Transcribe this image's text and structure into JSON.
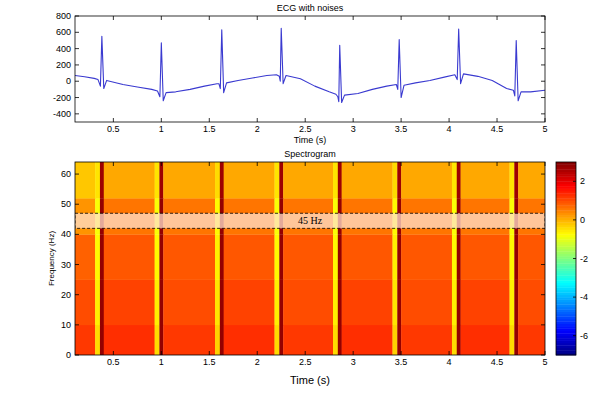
{
  "chart_data": [
    {
      "type": "line",
      "title": "ECG with noises",
      "xlabel": "Time (s)",
      "x": [
        0.1,
        0.2,
        0.3,
        0.34,
        0.365,
        0.38,
        0.4,
        0.43,
        0.6,
        0.75,
        0.9,
        0.96,
        0.985,
        1.0,
        1.02,
        1.05,
        1.15,
        1.3,
        1.45,
        1.58,
        1.6,
        1.615,
        1.63,
        1.65,
        1.68,
        1.8,
        1.95,
        2.1,
        2.2,
        2.23,
        2.24,
        2.25,
        2.27,
        2.3,
        2.45,
        2.6,
        2.75,
        2.82,
        2.84,
        2.85,
        2.86,
        2.88,
        2.91,
        3.05,
        3.2,
        3.35,
        3.45,
        3.465,
        3.48,
        3.5,
        3.53,
        3.65,
        3.8,
        3.95,
        4.06,
        4.085,
        4.1,
        4.12,
        4.15,
        4.3,
        4.45,
        4.6,
        4.67,
        4.685,
        4.7,
        4.72,
        4.75,
        4.85,
        5.0
      ],
      "values": [
        70,
        55,
        35,
        20,
        -60,
        550,
        -90,
        10,
        -40,
        -70,
        -100,
        -120,
        -190,
        470,
        -240,
        -140,
        -130,
        -100,
        -60,
        -30,
        -30,
        -90,
        630,
        -140,
        -20,
        10,
        40,
        70,
        80,
        60,
        0,
        650,
        -30,
        70,
        30,
        -60,
        -130,
        -160,
        -190,
        -250,
        440,
        -260,
        -170,
        -150,
        -100,
        -60,
        -40,
        -100,
        510,
        -200,
        -50,
        -20,
        10,
        50,
        80,
        20,
        640,
        -30,
        90,
        60,
        10,
        -90,
        -110,
        -180,
        500,
        -240,
        -130,
        -130,
        -110
      ],
      "color": "#3a3ad0",
      "xlim": [
        0.1,
        5
      ],
      "xticks": [
        0.5,
        1,
        1.5,
        2,
        2.5,
        3,
        3.5,
        4,
        4.5,
        5
      ],
      "ylim": [
        -500,
        800
      ],
      "yticks": [
        -400,
        -200,
        0,
        200,
        400,
        600,
        800
      ],
      "grid": false
    },
    {
      "type": "heatmap",
      "title": "Spectrogram",
      "xlabel": "Time (s)",
      "ylabel": "Frequency (Hz)",
      "x_edges": [
        0.1,
        0.31,
        0.36,
        0.4,
        0.93,
        0.98,
        1.02,
        1.56,
        1.61,
        1.65,
        2.18,
        2.23,
        2.27,
        2.79,
        2.84,
        2.88,
        3.41,
        3.46,
        3.5,
        4.03,
        4.08,
        4.12,
        4.63,
        4.68,
        4.72,
        5.0
      ],
      "y_edges": [
        0,
        10,
        25,
        40,
        52,
        64
      ],
      "cells": [
        [
          1.2,
          -0.4,
          2.8,
          1.3,
          -0.4,
          2.8,
          1.2,
          -0.3,
          2.8,
          1.3,
          -0.4,
          2.8,
          1.2,
          -0.4,
          2.8,
          1.3,
          -0.3,
          2.8,
          1.2,
          -0.4,
          2.8,
          1.3,
          -0.4,
          2.8,
          1.2
        ],
        [
          1.0,
          -0.6,
          2.8,
          1.1,
          -0.6,
          2.8,
          1.0,
          -0.5,
          2.8,
          1.1,
          -0.6,
          2.8,
          1.0,
          -0.6,
          2.8,
          1.1,
          -0.5,
          2.8,
          1.0,
          -0.6,
          2.8,
          1.1,
          -0.6,
          2.8,
          1.0
        ],
        [
          0.8,
          -0.7,
          2.8,
          0.9,
          -0.7,
          2.8,
          0.9,
          -0.6,
          2.8,
          0.9,
          -0.7,
          2.8,
          0.9,
          -0.7,
          2.8,
          0.9,
          -0.6,
          2.8,
          0.9,
          -0.7,
          2.8,
          0.9,
          -0.7,
          2.8,
          0.9
        ],
        [
          0.3,
          -0.8,
          2.8,
          0.6,
          -0.8,
          2.8,
          0.6,
          -0.7,
          2.8,
          0.6,
          -0.8,
          2.8,
          0.6,
          -0.8,
          2.8,
          0.6,
          -0.7,
          2.8,
          0.6,
          -0.8,
          2.8,
          0.6,
          -0.8,
          2.8,
          0.6
        ],
        [
          -0.2,
          -0.5,
          2.7,
          0.1,
          -0.5,
          2.7,
          0.1,
          -0.4,
          2.7,
          0.1,
          -0.5,
          2.7,
          0.1,
          -0.5,
          2.7,
          0.1,
          -0.4,
          2.7,
          0.1,
          -0.5,
          2.7,
          0.1,
          -0.5,
          2.7,
          0.1
        ]
      ],
      "xlim": [
        0.1,
        5
      ],
      "xticks": [
        0.5,
        1,
        1.5,
        2,
        2.5,
        3,
        3.5,
        4,
        4.5,
        5
      ],
      "ylim": [
        0,
        64
      ],
      "yticks": [
        0,
        10,
        20,
        30,
        40,
        50,
        60
      ],
      "colorbar": {
        "range": [
          -7,
          3
        ],
        "ticks": [
          -6,
          -4,
          -2,
          0,
          2
        ]
      },
      "annotations": [
        {
          "text": "45 Hz",
          "band": [
            42,
            47
          ]
        }
      ]
    }
  ]
}
